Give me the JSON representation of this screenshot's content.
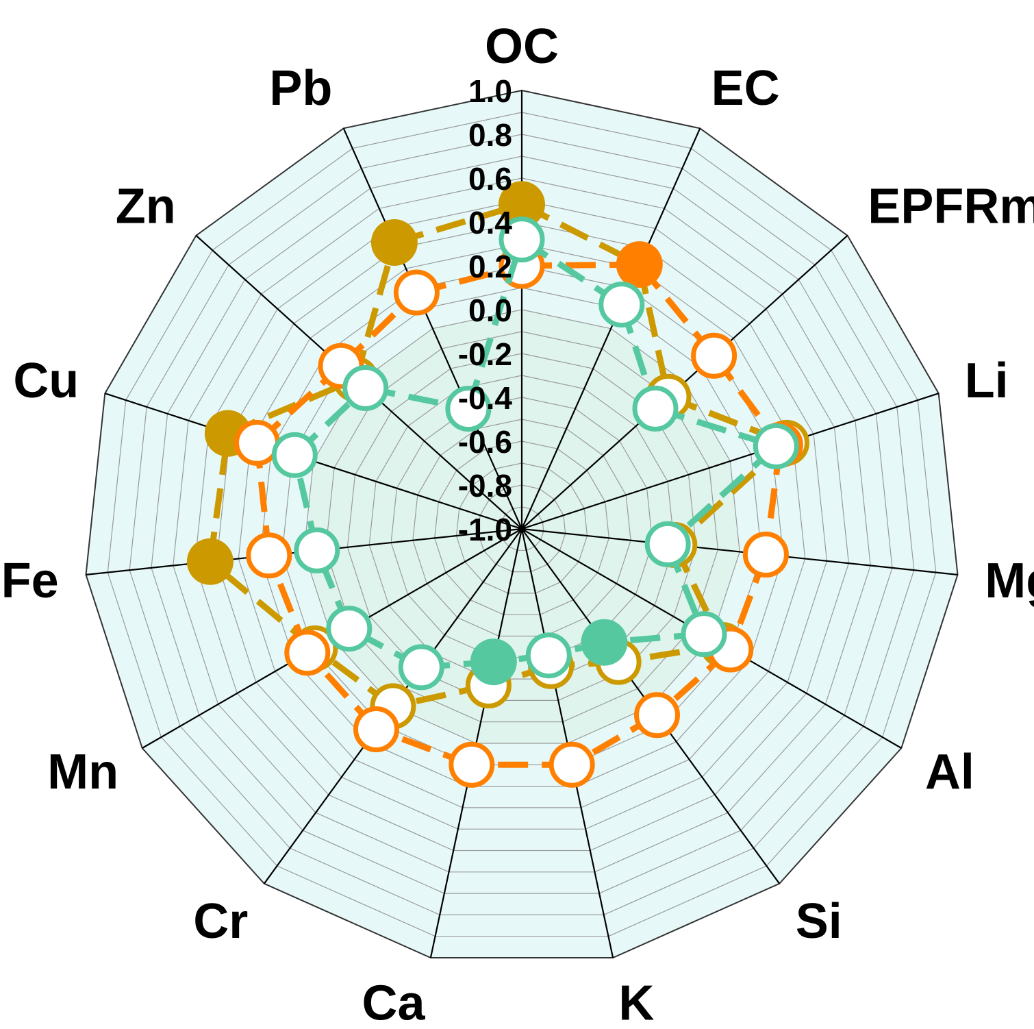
{
  "chart_data": {
    "type": "radar",
    "title": "",
    "axes": [
      "OC",
      "EC",
      "EPFRm",
      "Li",
      "Mg",
      "Al",
      "Si",
      "K",
      "Ca",
      "Cr",
      "Mn",
      "Fe",
      "Cu",
      "Zn",
      "Pb"
    ],
    "rlim": [
      -1.0,
      1.0
    ],
    "ticks": [
      "1.0",
      "0.8",
      "0.6",
      "0.4",
      "0.2",
      "0.0",
      "-0.2",
      "-0.4",
      "-0.6",
      "-0.8",
      "-1.0"
    ],
    "tick_values": [
      1.0,
      0.8,
      0.6,
      0.4,
      0.2,
      0.0,
      -0.2,
      -0.4,
      -0.6,
      -0.8,
      -1.0
    ],
    "grid": true,
    "legend": "none",
    "series": [
      {
        "color": "#cc9900",
        "values": [
          0.48,
          0.32,
          -0.1,
          0.27,
          -0.3,
          0.06,
          -0.25,
          -0.36,
          -0.27,
          0.0,
          0.09,
          0.43,
          0.41,
          0.02,
          0.43
        ],
        "filled": [
          true,
          false,
          false,
          false,
          false,
          false,
          false,
          false,
          false,
          false,
          false,
          true,
          true,
          false,
          true
        ]
      },
      {
        "color": "#ff8000",
        "values": [
          0.2,
          0.32,
          0.18,
          0.24,
          0.12,
          0.1,
          0.05,
          0.1,
          0.1,
          0.13,
          0.13,
          0.16,
          0.27,
          0.11,
          0.18
        ],
        "filled": [
          false,
          true,
          false,
          false,
          false,
          false,
          false,
          false,
          false,
          false,
          false,
          false,
          false,
          false,
          false
        ]
      },
      {
        "color": "#55c8a0",
        "values": [
          0.32,
          0.12,
          -0.18,
          0.22,
          -0.33,
          -0.04,
          -0.36,
          -0.41,
          -0.38,
          -0.22,
          -0.09,
          -0.06,
          0.09,
          -0.04,
          -0.4
        ],
        "filled": [
          false,
          false,
          false,
          false,
          false,
          false,
          true,
          false,
          true,
          false,
          false,
          false,
          false,
          false,
          false
        ]
      }
    ]
  }
}
